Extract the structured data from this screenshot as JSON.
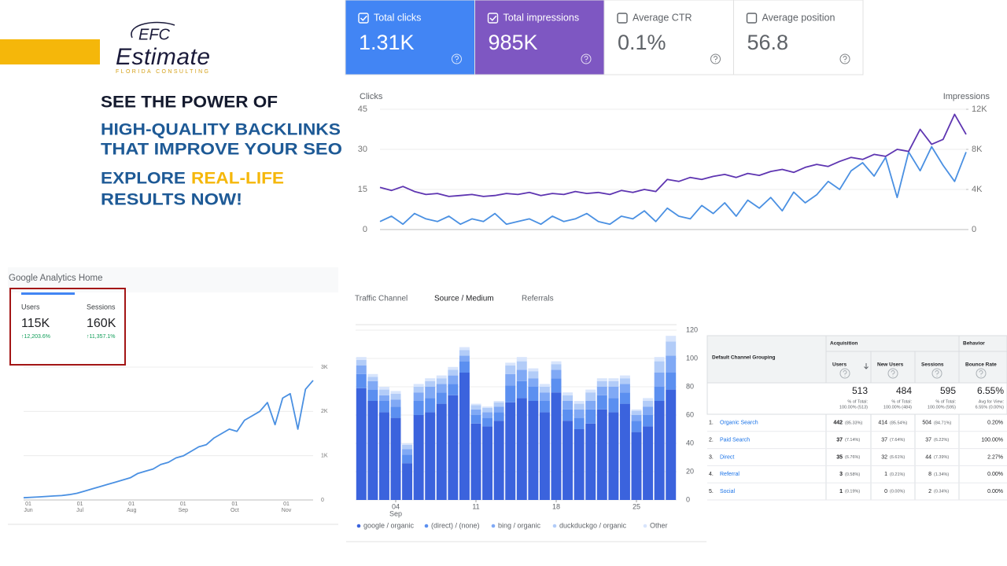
{
  "brand": {
    "monogram": "EFC",
    "name": "Estimate",
    "tagline": "FLORIDA CONSULTING"
  },
  "headline": {
    "line1": "SEE THE POWER OF",
    "line2": "HIGH-QUALITY BACKLINKS",
    "line3": "THAT IMPROVE YOUR SEO",
    "line4a": "EXPLORE",
    "line4b": "REAL-LIFE",
    "line5": "RESULTS NOW!"
  },
  "search_console": {
    "metrics": [
      {
        "label": "Total clicks",
        "value": "1.31K",
        "checked": true,
        "color": "#4285f4"
      },
      {
        "label": "Total impressions",
        "value": "985K",
        "checked": true,
        "color": "#7e57c2"
      },
      {
        "label": "Average CTR",
        "value": "0.1%",
        "checked": false,
        "color": "#ffffff"
      },
      {
        "label": "Average position",
        "value": "56.8",
        "checked": false,
        "color": "#ffffff"
      }
    ]
  },
  "analytics": {
    "title": "Google Analytics Home",
    "cards": [
      {
        "label": "Users",
        "value": "115K",
        "change": "↑12,203.6%"
      },
      {
        "label": "Sessions",
        "value": "160K",
        "change": "↑11,357.1%"
      }
    ]
  },
  "tabs": [
    "Traffic Channel",
    "Source / Medium",
    "Referrals"
  ],
  "table": {
    "first_header": "Default Channel Grouping",
    "groups": [
      "Acquisition",
      "Behavior"
    ],
    "columns": [
      "Users",
      "New Users",
      "Sessions",
      "Bounce Rate"
    ],
    "totals": [
      {
        "value": "513",
        "line1": "% of Total:",
        "line2": "100.00% (513)"
      },
      {
        "value": "484",
        "line1": "% of Total:",
        "line2": "100.00% (484)"
      },
      {
        "value": "595",
        "line1": "% of Total:",
        "line2": "100.00% (595)"
      },
      {
        "value": "6.55%",
        "line1": "Avg for View:",
        "line2": "6.55% (0.00%)"
      }
    ],
    "rows": [
      {
        "index": "1.",
        "name": "Organic Search",
        "users": "442",
        "users_pct": "(85.33%)",
        "new_users": "414",
        "new_users_pct": "(85.54%)",
        "sessions": "504",
        "sessions_pct": "(84.71%)",
        "bounce": "0.20%"
      },
      {
        "index": "2.",
        "name": "Paid Search",
        "users": "37",
        "users_pct": "(7.14%)",
        "new_users": "37",
        "new_users_pct": "(7.64%)",
        "sessions": "37",
        "sessions_pct": "(6.22%)",
        "bounce": "100.00%"
      },
      {
        "index": "3.",
        "name": "Direct",
        "users": "35",
        "users_pct": "(6.76%)",
        "new_users": "32",
        "new_users_pct": "(6.61%)",
        "sessions": "44",
        "sessions_pct": "(7.39%)",
        "bounce": "2.27%"
      },
      {
        "index": "4.",
        "name": "Referral",
        "users": "3",
        "users_pct": "(0.58%)",
        "new_users": "1",
        "new_users_pct": "(0.21%)",
        "sessions": "8",
        "sessions_pct": "(1.34%)",
        "bounce": "0.00%"
      },
      {
        "index": "5.",
        "name": "Social",
        "users": "1",
        "users_pct": "(0.19%)",
        "new_users": "0",
        "new_users_pct": "(0.00%)",
        "sessions": "2",
        "sessions_pct": "(0.34%)",
        "bounce": "0.00%"
      }
    ]
  },
  "chart_data": [
    {
      "type": "line",
      "y_label": "Clicks",
      "y2_label": "Impressions",
      "ylim": [
        0,
        45
      ],
      "yticks": [
        0,
        15,
        30,
        45
      ],
      "y2lim": [
        0,
        12000
      ],
      "y2ticks": [
        0,
        {
          "value": 4000,
          "label": "4K"
        },
        {
          "value": 8000,
          "label": "8K"
        },
        {
          "value": 12000,
          "label": "12K"
        }
      ],
      "grid": true,
      "series": [
        {
          "name": "Clicks",
          "color": "#4a90e2",
          "values": [
            3,
            5,
            2,
            6,
            4,
            3,
            5,
            2,
            4,
            3,
            6,
            2,
            3,
            4,
            2,
            5,
            3,
            4,
            6,
            3,
            2,
            5,
            4,
            7,
            3,
            8,
            5,
            4,
            9,
            6,
            10,
            5,
            11,
            8,
            12,
            7,
            14,
            10,
            13,
            18,
            15,
            22,
            25,
            20,
            27,
            12,
            29,
            22,
            31,
            24,
            18,
            29
          ]
        },
        {
          "name": "Impressions",
          "color": "#5e35b1",
          "axis": "y2",
          "values": [
            4200,
            3900,
            4300,
            3800,
            3500,
            3600,
            3300,
            3400,
            3500,
            3300,
            3400,
            3600,
            3500,
            3700,
            3400,
            3600,
            3500,
            3800,
            3600,
            3700,
            3500,
            3900,
            3700,
            4000,
            3800,
            5000,
            4800,
            5200,
            5000,
            5300,
            5500,
            5200,
            5600,
            5400,
            5800,
            6000,
            5700,
            6200,
            6500,
            6300,
            6800,
            7200,
            7000,
            7500,
            7300,
            8000,
            7800,
            10000,
            8500,
            9000,
            11500,
            9500
          ]
        }
      ]
    },
    {
      "type": "line",
      "ylim": [
        0,
        3000
      ],
      "yticks": [
        0,
        {
          "value": 1000,
          "label": "1K"
        },
        {
          "value": 2000,
          "label": "2K"
        },
        {
          "value": 3000,
          "label": "3K"
        }
      ],
      "grid": true,
      "xtick_labels": [
        {
          "day": "01",
          "month": "Jun"
        },
        {
          "day": "01",
          "month": "Jul"
        },
        {
          "day": "01",
          "month": "Aug"
        },
        {
          "day": "01",
          "month": "Sep"
        },
        {
          "day": "01",
          "month": "Oct"
        },
        {
          "day": "01",
          "month": "Nov"
        }
      ],
      "series": [
        {
          "name": "Users",
          "color": "#4a90e2",
          "values": [
            50,
            60,
            70,
            80,
            90,
            100,
            120,
            150,
            200,
            250,
            300,
            350,
            400,
            450,
            500,
            600,
            650,
            700,
            800,
            850,
            950,
            1000,
            1100,
            1200,
            1250,
            1400,
            1500,
            1600,
            1550,
            1800,
            1900,
            2000,
            2200,
            1700,
            2300,
            2400,
            1600,
            2500,
            2700
          ]
        }
      ]
    },
    {
      "type": "bar",
      "stacked": true,
      "ylim": [
        0,
        120
      ],
      "yticks": [
        0,
        20,
        40,
        60,
        80,
        100,
        120
      ],
      "grid": true,
      "categories": [
        null,
        null,
        null,
        "04",
        null,
        null,
        null,
        null,
        null,
        null,
        "11",
        null,
        null,
        null,
        null,
        null,
        null,
        "18",
        null,
        null,
        null,
        null,
        null,
        null,
        "25",
        null,
        null,
        null
      ],
      "month": "Sep",
      "series": [
        {
          "name": "google / organic",
          "color": "#3b63dd",
          "values": [
            79,
            70,
            62,
            58,
            26,
            60,
            62,
            68,
            74,
            90,
            54,
            52,
            56,
            69,
            72,
            70,
            62,
            76,
            56,
            50,
            54,
            64,
            62,
            68,
            48,
            52,
            70,
            78
          ]
        },
        {
          "name": "(direct) / (none)",
          "color": "#5b8ff0",
          "values": [
            10,
            8,
            8,
            8,
            6,
            10,
            10,
            8,
            8,
            8,
            6,
            6,
            6,
            12,
            12,
            10,
            8,
            10,
            8,
            8,
            10,
            10,
            10,
            8,
            8,
            8,
            10,
            12
          ]
        },
        {
          "name": "bing / organic",
          "color": "#80a9f5",
          "values": [
            6,
            6,
            4,
            5,
            4,
            6,
            8,
            6,
            6,
            4,
            4,
            4,
            4,
            8,
            8,
            6,
            6,
            6,
            6,
            6,
            6,
            6,
            8,
            6,
            4,
            6,
            10,
            12
          ]
        },
        {
          "name": "duckduckgo / organic",
          "color": "#b2ccf8",
          "values": [
            4,
            3,
            4,
            4,
            3,
            4,
            4,
            4,
            4,
            4,
            3,
            3,
            3,
            6,
            6,
            5,
            4,
            4,
            4,
            4,
            6,
            4,
            4,
            4,
            3,
            4,
            8,
            10
          ]
        },
        {
          "name": "Other",
          "color": "#d8e5fc",
          "values": [
            2,
            2,
            2,
            2,
            1,
            2,
            2,
            2,
            2,
            2,
            1,
            1,
            1,
            2,
            3,
            2,
            2,
            2,
            2,
            2,
            2,
            2,
            2,
            2,
            1,
            2,
            3,
            4
          ]
        }
      ]
    }
  ]
}
